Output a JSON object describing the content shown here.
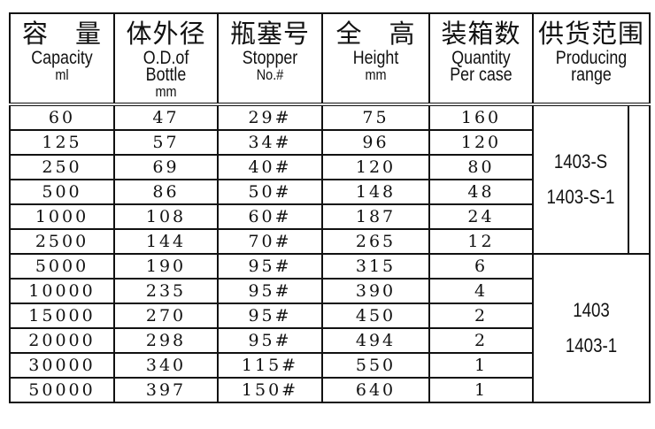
{
  "headers": [
    {
      "cn": "容　量",
      "en": "Capacity",
      "unit": "ml"
    },
    {
      "cn": "体外径",
      "en": "O.D.of Bottle",
      "unit": "mm"
    },
    {
      "cn": "瓶塞号",
      "en": "Stopper",
      "unit": "No.#"
    },
    {
      "cn": "全　高",
      "en": "Height",
      "unit": "mm"
    },
    {
      "cn": "装箱数",
      "en": "Quantity Per case",
      "unit": ""
    },
    {
      "cn": "供货范围",
      "en": "Producing range",
      "unit": ""
    }
  ],
  "rows": [
    [
      "60",
      "47",
      "29#",
      "75",
      "160"
    ],
    [
      "125",
      "57",
      "34#",
      "96",
      "120"
    ],
    [
      "250",
      "69",
      "40#",
      "120",
      "80"
    ],
    [
      "500",
      "86",
      "50#",
      "148",
      "48"
    ],
    [
      "1000",
      "108",
      "60#",
      "187",
      "24"
    ],
    [
      "2500",
      "144",
      "70#",
      "265",
      "12"
    ],
    [
      "5000",
      "190",
      "95#",
      "315",
      "6"
    ],
    [
      "10000",
      "235",
      "95#",
      "390",
      "4"
    ],
    [
      "15000",
      "270",
      "95#",
      "450",
      "2"
    ],
    [
      "20000",
      "298",
      "95#",
      "494",
      "2"
    ],
    [
      "30000",
      "340",
      "115#",
      "550",
      "1"
    ],
    [
      "50000",
      "397",
      "150#",
      "640",
      "1"
    ]
  ],
  "ranges": [
    [
      "1403-S",
      "1403-S-1"
    ],
    [
      "1403",
      "1403-1"
    ]
  ]
}
